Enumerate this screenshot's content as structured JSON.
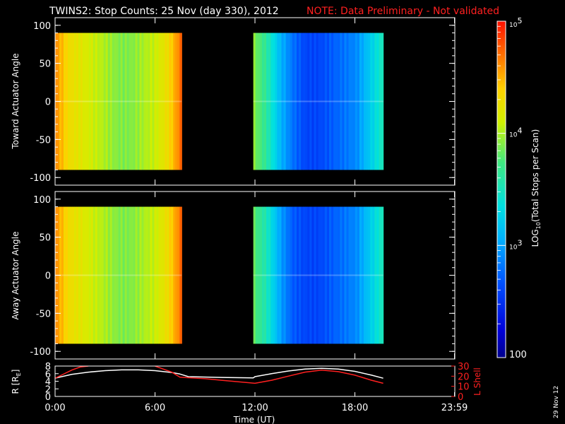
{
  "title": {
    "main": "TWINS2: Stop Counts: 25 Nov (day 330), 2012",
    "note": "NOTE: Data Preliminary - Not validated"
  },
  "date_stamp": "29 Nov 12",
  "colors": {
    "note_red": "#ff2020",
    "axis": "#ffffff",
    "background": "#000000"
  },
  "colorbar": {
    "label": "LOG10(Total Stops per Scan)",
    "label_base": "LOG",
    "label_sub": "10",
    "label_rest": "(Total Stops per Scan)",
    "ticks": [
      {
        "value": 100,
        "label": "100",
        "sup": ""
      },
      {
        "value": 1000,
        "label": "10",
        "sup": "3"
      },
      {
        "value": 10000,
        "label": "10",
        "sup": "4"
      },
      {
        "value": 100000,
        "label": "10",
        "sup": "5"
      }
    ],
    "scale": "log"
  },
  "chart_data": [
    {
      "type": "heatmap",
      "panel": "toward",
      "ylabel": "Toward Actuator Angle",
      "ylim": [
        -110,
        110
      ],
      "yticks": [
        100,
        50,
        0,
        -50,
        -100
      ],
      "y_extent": [
        -90,
        90
      ],
      "x_unit": "hours UT",
      "blocks": [
        {
          "x_start": 0.0,
          "x_end": 7.6,
          "level_profile": [
            4.6,
            4.3,
            4.2,
            4.1,
            4.0,
            3.9,
            3.9,
            4.0,
            4.1,
            4.3,
            4.7
          ]
        },
        {
          "x_start": 11.9,
          "x_end": 19.7,
          "level_profile": [
            3.9,
            3.6,
            3.1,
            2.8,
            2.6,
            2.6,
            2.7,
            2.8,
            2.9,
            3.2,
            3.5
          ]
        }
      ],
      "gaps": [
        [
          7.6,
          11.9
        ]
      ]
    },
    {
      "type": "heatmap",
      "panel": "away",
      "ylabel": "Away Actuator Angle",
      "ylim": [
        -110,
        110
      ],
      "yticks": [
        100,
        50,
        0,
        -50,
        -100
      ],
      "y_extent": [
        -90,
        90
      ],
      "x_unit": "hours UT",
      "blocks": [
        {
          "x_start": 0.0,
          "x_end": 7.6,
          "level_profile": [
            4.6,
            4.3,
            4.2,
            4.1,
            4.0,
            3.9,
            3.9,
            4.0,
            4.1,
            4.3,
            4.7
          ]
        },
        {
          "x_start": 11.9,
          "x_end": 19.7,
          "level_profile": [
            3.8,
            3.5,
            3.0,
            2.7,
            2.6,
            2.6,
            2.7,
            2.8,
            2.9,
            3.2,
            3.5
          ]
        }
      ],
      "gaps": [
        [
          7.6,
          11.9
        ]
      ]
    },
    {
      "type": "line",
      "panel": "orbit",
      "xlabel": "Time (UT)",
      "xticks": [
        {
          "value": 0.0,
          "label": "0:00"
        },
        {
          "value": 6.0,
          "label": "6:00"
        },
        {
          "value": 12.0,
          "label": "12:00"
        },
        {
          "value": 18.0,
          "label": "18:00"
        },
        {
          "value": 23.98,
          "label": "23:59"
        }
      ],
      "xlim": [
        0,
        24
      ],
      "ylabel_left": "R [RE]",
      "ylabel_left_base": "R [R",
      "ylabel_left_sub": "E",
      "ylabel_left_close": "]",
      "ylim_left": [
        0,
        8
      ],
      "yticks_left": [
        0,
        2,
        4,
        6,
        8
      ],
      "ylabel_right": "L Shell",
      "ylim_right": [
        0,
        30
      ],
      "yticks_right": [
        0,
        10,
        20,
        30
      ],
      "series": [
        {
          "axis": "left",
          "color": "#ffffff",
          "x": [
            0.0,
            1.0,
            2.0,
            3.0,
            4.0,
            5.0,
            6.0,
            7.0,
            7.5,
            8.0,
            10.0,
            11.9,
            12.0,
            13.0,
            14.0,
            15.0,
            16.0,
            17.0,
            18.0,
            19.0,
            19.7
          ],
          "y": [
            4.8,
            5.8,
            6.4,
            6.8,
            7.0,
            7.0,
            6.8,
            6.3,
            5.9,
            5.2,
            5.0,
            4.9,
            5.2,
            6.0,
            6.7,
            7.2,
            7.4,
            7.2,
            6.6,
            5.6,
            4.8
          ]
        },
        {
          "axis": "right",
          "color": "#ff2020",
          "x": [
            0.0,
            0.5,
            1.0,
            1.5,
            2.0
          ],
          "y": [
            18,
            22,
            26,
            29,
            30
          ]
        },
        {
          "axis": "right",
          "color": "#ff2020",
          "x": [
            6.0,
            6.5,
            7.0,
            7.5,
            8.0,
            9.0,
            10.0,
            11.0,
            12.0,
            13.0,
            14.0,
            15.0,
            16.0,
            17.0,
            18.0,
            19.0,
            19.7
          ],
          "y": [
            30,
            27,
            24,
            19,
            18.5,
            17.5,
            16,
            14.5,
            13,
            16,
            20,
            24,
            26,
            24.5,
            21,
            16,
            13
          ]
        }
      ]
    }
  ]
}
